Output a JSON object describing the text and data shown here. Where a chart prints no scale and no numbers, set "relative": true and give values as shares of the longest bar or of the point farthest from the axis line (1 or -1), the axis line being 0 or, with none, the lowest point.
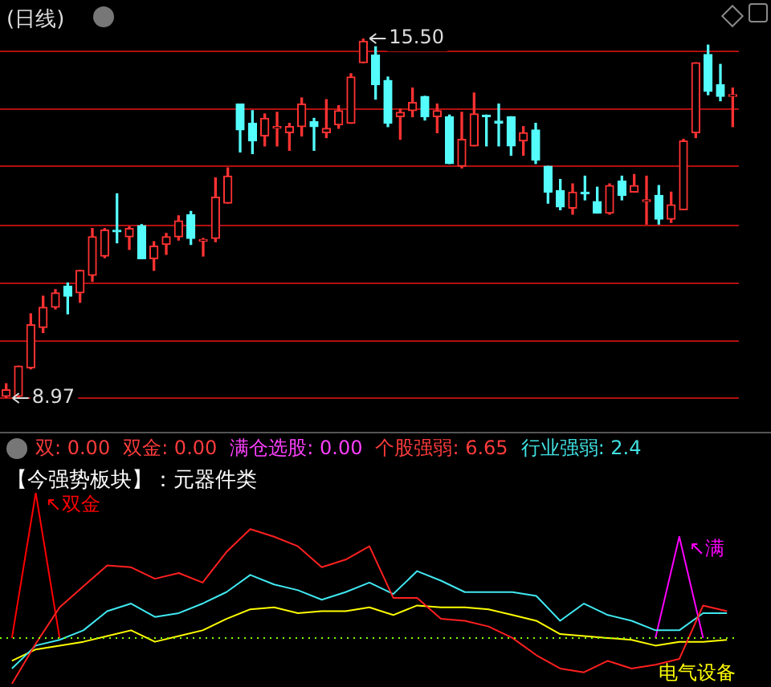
{
  "chart_data": [
    {
      "type": "candlestick",
      "title": "(日线)",
      "categories": [
        null,
        null,
        null,
        null,
        null,
        null,
        null,
        null,
        null,
        null,
        null,
        null,
        null,
        null,
        null,
        null,
        null,
        null,
        null,
        null,
        null,
        null,
        null,
        null,
        null,
        null,
        null,
        null,
        null,
        null,
        null,
        null,
        null,
        null,
        null,
        null,
        null,
        null,
        null,
        null,
        null,
        null,
        null,
        null,
        null,
        null,
        null,
        null,
        null,
        null,
        null,
        null,
        null,
        null,
        null,
        null,
        null,
        null,
        null,
        null
      ],
      "ohlc": [
        [
          9.0,
          9.23,
          8.97,
          9.12
        ],
        [
          9.0,
          9.55,
          8.99,
          9.55
        ],
        [
          9.52,
          10.5,
          9.5,
          10.3
        ],
        [
          10.25,
          10.82,
          10.16,
          10.62
        ],
        [
          10.62,
          10.94,
          10.59,
          10.88
        ],
        [
          11.0,
          11.06,
          10.5,
          10.82
        ],
        [
          10.88,
          11.29,
          10.71,
          11.29
        ],
        [
          11.2,
          12.05,
          11.09,
          11.9
        ],
        [
          11.55,
          12.05,
          11.52,
          12.02
        ],
        [
          12.0,
          12.68,
          11.79,
          11.99
        ],
        [
          11.9,
          12.08,
          11.67,
          12.05
        ],
        [
          12.1,
          12.12,
          11.5,
          11.5
        ],
        [
          11.5,
          11.81,
          11.29,
          11.73
        ],
        [
          11.76,
          11.96,
          11.58,
          11.9
        ],
        [
          11.9,
          12.28,
          11.84,
          12.19
        ],
        [
          12.3,
          12.36,
          11.76,
          11.87
        ],
        [
          11.82,
          11.87,
          11.55,
          11.85
        ],
        [
          11.87,
          12.97,
          11.81,
          12.62
        ],
        [
          12.51,
          13.15,
          12.51,
          13.0
        ],
        [
          14.31,
          14.31,
          13.44,
          13.84
        ],
        [
          13.96,
          14.19,
          13.41,
          13.64
        ],
        [
          13.73,
          14.13,
          13.55,
          14.05
        ],
        [
          13.87,
          14.16,
          13.55,
          13.9
        ],
        [
          13.79,
          13.96,
          13.47,
          13.9
        ],
        [
          13.9,
          14.42,
          13.73,
          14.31
        ],
        [
          13.99,
          14.05,
          13.47,
          13.9
        ],
        [
          13.79,
          14.39,
          13.7,
          13.87
        ],
        [
          13.93,
          14.28,
          13.87,
          14.19
        ],
        [
          13.96,
          14.86,
          13.96,
          14.8
        ],
        [
          15.06,
          15.5,
          15.06,
          15.45
        ],
        [
          15.2,
          15.35,
          14.4,
          14.66
        ],
        [
          14.74,
          14.8,
          13.9,
          13.96
        ],
        [
          14.08,
          14.22,
          13.67,
          14.16
        ],
        [
          14.19,
          14.6,
          14.08,
          14.34
        ],
        [
          14.45,
          14.45,
          14.02,
          14.08
        ],
        [
          14.08,
          14.31,
          13.79,
          14.19
        ],
        [
          14.08,
          14.11,
          13.23,
          13.23
        ],
        [
          13.18,
          14.16,
          13.15,
          13.67
        ],
        [
          13.55,
          14.51,
          13.55,
          14.13
        ],
        [
          14.11,
          14.11,
          13.55,
          14.08
        ],
        [
          14.0,
          14.31,
          13.55,
          13.96
        ],
        [
          14.08,
          14.08,
          13.38,
          13.55
        ],
        [
          13.64,
          13.9,
          13.38,
          13.79
        ],
        [
          13.84,
          13.96,
          13.23,
          13.29
        ],
        [
          13.18,
          13.18,
          12.51,
          12.71
        ],
        [
          12.74,
          12.94,
          12.39,
          12.44
        ],
        [
          12.42,
          12.86,
          12.31,
          12.71
        ],
        [
          12.71,
          13.0,
          12.57,
          12.68
        ],
        [
          12.54,
          12.8,
          12.33,
          12.33
        ],
        [
          12.33,
          12.86,
          12.31,
          12.83
        ],
        [
          12.91,
          13.0,
          12.57,
          12.65
        ],
        [
          12.71,
          13.03,
          12.71,
          12.83
        ],
        [
          12.54,
          13.0,
          12.13,
          12.57
        ],
        [
          12.65,
          12.83,
          12.13,
          12.22
        ],
        [
          12.22,
          12.71,
          12.16,
          12.48
        ],
        [
          12.39,
          13.67,
          12.39,
          13.64
        ],
        [
          13.79,
          15.06,
          13.7,
          15.06
        ],
        [
          15.21,
          15.38,
          14.48,
          14.54
        ],
        [
          14.66,
          15.03,
          14.37,
          14.45
        ],
        [
          14.45,
          14.6,
          13.9,
          14.48
        ]
      ],
      "colors": [
        "#ff3232",
        "#ff3232",
        "#ff3232",
        "#ff3232",
        "#ff3232",
        "#54fcfc",
        "#ff3232",
        "#ff3232",
        "#ff3232",
        "#54fcfc",
        "#ff3232",
        "#54fcfc",
        "#ff3232",
        "#ff3232",
        "#ff3232",
        "#54fcfc",
        "#ff3232",
        "#ff3232",
        "#ff3232",
        "#54fcfc",
        "#54fcfc",
        "#ff3232",
        "#ff3232",
        "#ff3232",
        "#ff3232",
        "#54fcfc",
        "#ff3232",
        "#ff3232",
        "#ff3232",
        "#ff3232",
        "#54fcfc",
        "#54fcfc",
        "#ff3232",
        "#ff3232",
        "#54fcfc",
        "#ff3232",
        "#54fcfc",
        "#ff3232",
        "#ff3232",
        "#54fcfc",
        "#54fcfc",
        "#54fcfc",
        "#ff3232",
        "#54fcfc",
        "#54fcfc",
        "#54fcfc",
        "#ff3232",
        "#54fcfc",
        "#54fcfc",
        "#ff3232",
        "#54fcfc",
        "#ff3232",
        "#ff3232",
        "#54fcfc",
        "#ff3232",
        "#ff3232",
        "#ff3232",
        "#54fcfc",
        "#54fcfc",
        "#ff3232"
      ],
      "yticks": [
        {
          "value": 8.97,
          "label": null
        },
        {
          "value": 10.01,
          "label": null
        },
        {
          "value": 11.06,
          "label": null
        },
        {
          "value": 12.1,
          "label": null
        },
        {
          "value": 13.18,
          "label": null
        },
        {
          "value": 14.22,
          "label": null
        },
        {
          "value": 15.27,
          "label": null
        }
      ],
      "grid": "y",
      "tick_labels": false,
      "annotations": [
        "15.50",
        "8.97"
      ]
    },
    {
      "type": "line",
      "title": "【今强势板块】：元器件类",
      "relative": true,
      "legend": false,
      "tick_labels": false,
      "categories": [
        null,
        null,
        null,
        null,
        null,
        null,
        null,
        null,
        null,
        null,
        null,
        null,
        null,
        null,
        null,
        null,
        null,
        null,
        null,
        null,
        null,
        null,
        null,
        null,
        null,
        null,
        null,
        null,
        null,
        null,
        null
      ],
      "series": [
        {
          "color": "#ff2020",
          "values": [
            0.0,
            0.21,
            0.4,
            0.51,
            0.62,
            0.61,
            0.55,
            0.58,
            0.53,
            0.69,
            0.81,
            0.77,
            0.72,
            0.61,
            0.65,
            0.72,
            0.45,
            0.45,
            0.34,
            0.33,
            0.3,
            0.24,
            0.15,
            0.08,
            0.06,
            0.12,
            0.08,
            0.1,
            0.13,
            0.41,
            0.38
          ]
        },
        {
          "color": "#40e8f0",
          "values": [
            0.08,
            0.2,
            0.23,
            0.28,
            0.38,
            0.42,
            0.35,
            0.37,
            0.42,
            0.48,
            0.57,
            0.52,
            0.49,
            0.44,
            0.48,
            0.53,
            0.47,
            0.59,
            0.54,
            0.48,
            0.48,
            0.48,
            0.46,
            0.33,
            0.42,
            0.36,
            0.33,
            0.28,
            0.28,
            0.37,
            0.37
          ]
        },
        {
          "color": "#ffff00",
          "values": [
            0.12,
            0.18,
            0.2,
            0.22,
            0.25,
            0.28,
            0.22,
            0.25,
            0.28,
            0.34,
            0.39,
            0.4,
            0.37,
            0.38,
            0.38,
            0.4,
            0.36,
            0.41,
            0.4,
            0.4,
            0.39,
            0.36,
            0.33,
            0.26,
            0.25,
            0.24,
            0.23,
            0.2,
            0.22,
            0.22,
            0.23
          ]
        },
        {
          "name": "↖双金",
          "color": "#ff0000",
          "values": [
            0.24,
            1.0,
            0.24,
            null,
            null,
            null,
            null,
            null,
            null,
            null,
            null,
            null,
            null,
            null,
            null,
            null,
            null,
            null,
            null,
            null,
            null,
            null,
            null,
            null,
            null,
            null,
            null,
            null,
            null,
            null,
            null
          ]
        },
        {
          "name": "↖满",
          "color": "#ff00ff",
          "values": [
            null,
            null,
            null,
            null,
            null,
            null,
            null,
            null,
            null,
            null,
            null,
            null,
            null,
            null,
            null,
            null,
            null,
            null,
            null,
            null,
            null,
            null,
            null,
            null,
            null,
            null,
            null,
            0.24,
            0.77,
            0.24,
            null
          ]
        }
      ],
      "ref_lines": [
        {
          "axis": "y",
          "value": 0.24,
          "color": "#7fff00",
          "line_style": "dotted"
        }
      ],
      "annotations": [
        "双: 0.00",
        "双金: 0.00",
        "满仓选股: 0.00",
        "个股强弱: 6.65",
        "行业强弱: 2.4",
        "电气设备"
      ]
    }
  ]
}
